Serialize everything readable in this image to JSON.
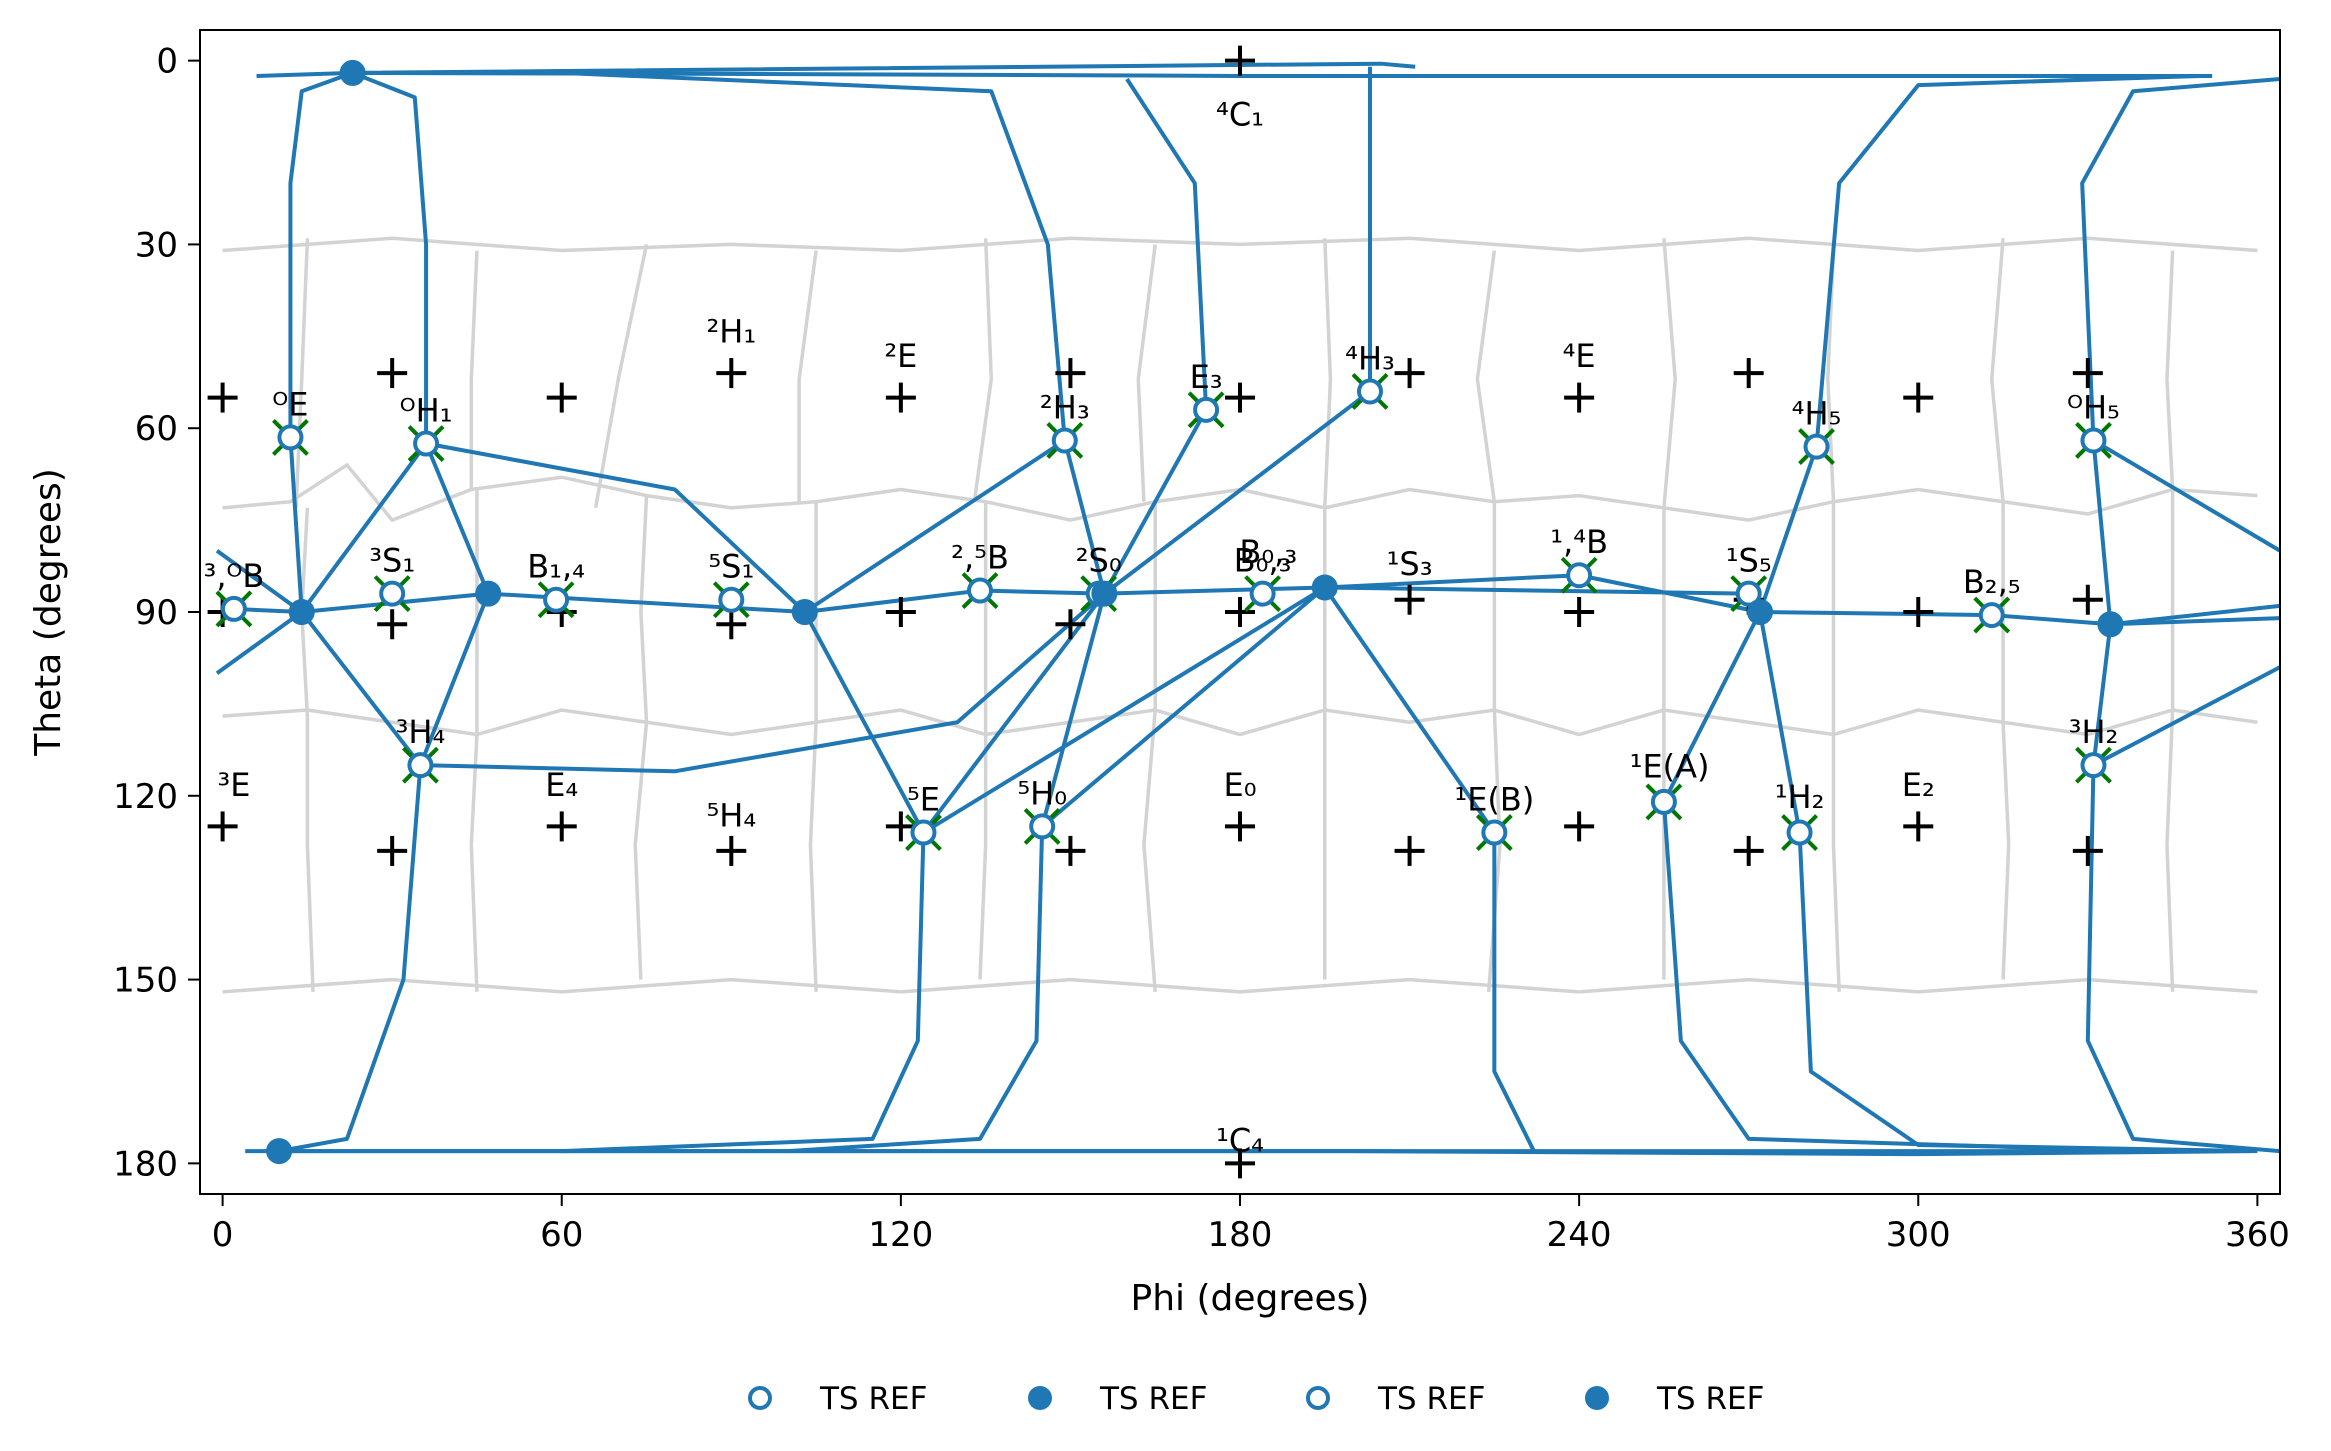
{
  "chart_data": {
    "type": "scatter",
    "xlabel": "Phi (degrees)",
    "ylabel": "Theta (degrees)",
    "xlim": [
      -4,
      364
    ],
    "ylim": [
      185,
      -5
    ],
    "y_inverted": true,
    "xticks": [
      0,
      60,
      120,
      180,
      240,
      300,
      360
    ],
    "yticks": [
      0,
      30,
      60,
      90,
      120,
      150,
      180
    ],
    "grid": false,
    "legend_position": "bottom-center-outside",
    "colors": {
      "path": "#1f77b4",
      "voronoi": "#d3d3d3",
      "marker_x": "#007700",
      "cross": "#000000"
    },
    "legend": [
      {
        "label": "TS REF",
        "marker": "open-circle"
      },
      {
        "label": "TS REF",
        "marker": "filled-circle"
      },
      {
        "label": "TS REF",
        "marker": "open-circle"
      },
      {
        "label": "TS REF",
        "marker": "filled-circle"
      }
    ],
    "pucker_centers": [
      {
        "label": "⁴C₁",
        "phi": 180,
        "theta": 0
      },
      {
        "label": "¹C₄",
        "phi": 180,
        "theta": 180
      },
      {
        "label": "",
        "phi": 0,
        "theta": 55
      },
      {
        "label": "",
        "phi": 30,
        "theta": 51
      },
      {
        "label": "",
        "phi": 60,
        "theta": 55
      },
      {
        "label": "",
        "phi": 90,
        "theta": 51
      },
      {
        "label": "",
        "phi": 120,
        "theta": 55
      },
      {
        "label": "",
        "phi": 150,
        "theta": 51
      },
      {
        "label": "",
        "phi": 180,
        "theta": 55
      },
      {
        "label": "",
        "phi": 210,
        "theta": 51
      },
      {
        "label": "",
        "phi": 240,
        "theta": 55
      },
      {
        "label": "",
        "phi": 270,
        "theta": 51
      },
      {
        "label": "",
        "phi": 300,
        "theta": 55
      },
      {
        "label": "",
        "phi": 330,
        "theta": 51
      },
      {
        "label": "",
        "phi": 0,
        "theta": 90
      },
      {
        "label": "",
        "phi": 30,
        "theta": 92
      },
      {
        "label": "",
        "phi": 60,
        "theta": 90
      },
      {
        "label": "",
        "phi": 90,
        "theta": 92
      },
      {
        "label": "",
        "phi": 120,
        "theta": 90
      },
      {
        "label": "",
        "phi": 150,
        "theta": 92
      },
      {
        "label": "",
        "phi": 180,
        "theta": 90
      },
      {
        "label": "",
        "phi": 210,
        "theta": 88
      },
      {
        "label": "",
        "phi": 240,
        "theta": 90
      },
      {
        "label": "",
        "phi": 270,
        "theta": 88
      },
      {
        "label": "",
        "phi": 300,
        "theta": 90
      },
      {
        "label": "",
        "phi": 330,
        "theta": 88
      },
      {
        "label": "",
        "phi": 0,
        "theta": 125
      },
      {
        "label": "",
        "phi": 30,
        "theta": 129
      },
      {
        "label": "",
        "phi": 60,
        "theta": 125
      },
      {
        "label": "",
        "phi": 90,
        "theta": 129
      },
      {
        "label": "",
        "phi": 120,
        "theta": 125
      },
      {
        "label": "",
        "phi": 150,
        "theta": 129
      },
      {
        "label": "",
        "phi": 180,
        "theta": 125
      },
      {
        "label": "",
        "phi": 210,
        "theta": 129
      },
      {
        "label": "",
        "phi": 240,
        "theta": 125
      },
      {
        "label": "",
        "phi": 270,
        "theta": 129
      },
      {
        "label": "",
        "phi": 300,
        "theta": 125
      },
      {
        "label": "",
        "phi": 330,
        "theta": 129
      }
    ],
    "region_labels": [
      {
        "label": "²H₁",
        "phi": 90,
        "theta": 46
      },
      {
        "label": "²E",
        "phi": 120,
        "theta": 50
      },
      {
        "label": "⁴E",
        "phi": 240,
        "theta": 50
      },
      {
        "label": "¹S₃",
        "phi": 210,
        "theta": 84
      },
      {
        "label": "B₀,₃",
        "phi": 185,
        "theta": 82
      },
      {
        "label": "³E",
        "phi": 2,
        "theta": 120
      },
      {
        "label": "E₄",
        "phi": 60,
        "theta": 120
      },
      {
        "label": "⁵H₄",
        "phi": 90,
        "theta": 125
      },
      {
        "label": "E₀",
        "phi": 180,
        "theta": 120
      },
      {
        "label": "E₂",
        "phi": 300,
        "theta": 120
      },
      {
        "label": "¹E(A)",
        "phi": 256,
        "theta": 117
      },
      {
        "label": "¹H₂",
        "phi": 279,
        "theta": 122
      }
    ],
    "ts_points": [
      {
        "label": "ᴼE",
        "phi": 12,
        "theta": 61.5
      },
      {
        "label": "ᴼH₁",
        "phi": 36,
        "theta": 62.5
      },
      {
        "label": "³,ᴼB",
        "phi": 2,
        "theta": 89.5
      },
      {
        "label": "³S₁",
        "phi": 30,
        "theta": 87
      },
      {
        "label": "B₁,₄",
        "phi": 59,
        "theta": 88
      },
      {
        "label": "⁵S₁",
        "phi": 90,
        "theta": 88
      },
      {
        "label": "²,⁵B",
        "phi": 134,
        "theta": 86.5
      },
      {
        "label": "²S₀",
        "phi": 155,
        "theta": 87
      },
      {
        "label": "²H₃",
        "phi": 149,
        "theta": 62
      },
      {
        "label": "E₃",
        "phi": 174,
        "theta": 57
      },
      {
        "label": "⁴H₃",
        "phi": 203,
        "theta": 54
      },
      {
        "label": "B₀,₃",
        "phi": 184,
        "theta": 87
      },
      {
        "label": "¹,⁴B",
        "phi": 240,
        "theta": 84
      },
      {
        "label": "¹S₅",
        "phi": 270,
        "theta": 87
      },
      {
        "label": "⁴H₅",
        "phi": 282,
        "theta": 63
      },
      {
        "label": "ᴼH₅",
        "phi": 331,
        "theta": 62
      },
      {
        "label": "B₂,₅",
        "phi": 313,
        "theta": 90.5
      },
      {
        "label": "³H₄",
        "phi": 35,
        "theta": 115
      },
      {
        "label": "³H₂",
        "phi": 331,
        "theta": 115
      },
      {
        "label": "⁵E",
        "phi": 124,
        "theta": 126
      },
      {
        "label": "⁵H₀",
        "phi": 145,
        "theta": 125
      },
      {
        "label": "¹E(B)",
        "phi": 225,
        "theta": 126
      },
      {
        "label": "",
        "phi": 255,
        "theta": 121
      },
      {
        "label": "",
        "phi": 279,
        "theta": 126
      }
    ],
    "minima": [
      {
        "phi": 23,
        "theta": 2
      },
      {
        "phi": 10,
        "theta": 178
      },
      {
        "phi": 14,
        "theta": 90
      },
      {
        "phi": 47,
        "theta": 87
      },
      {
        "phi": 103,
        "theta": 90
      },
      {
        "phi": 156,
        "theta": 87
      },
      {
        "phi": 195,
        "theta": 86
      },
      {
        "phi": 272,
        "theta": 90
      },
      {
        "phi": 334,
        "theta": 92
      }
    ]
  }
}
